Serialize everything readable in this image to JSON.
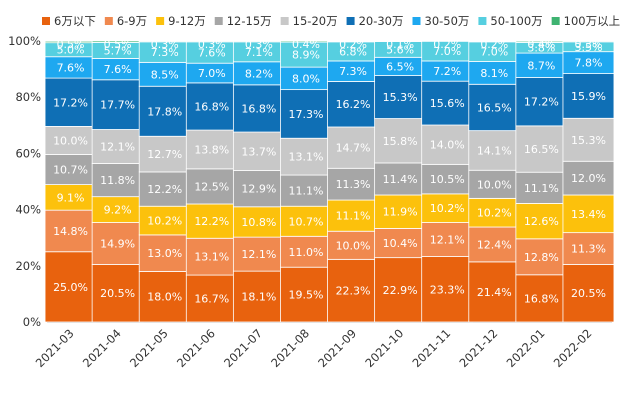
{
  "chart_data": {
    "type": "bar",
    "stacked": true,
    "percent": true,
    "title": "",
    "xlabel": "",
    "ylabel": "",
    "ylim": [
      0,
      100
    ],
    "yticks": [
      "0%",
      "20%",
      "40%",
      "60%",
      "80%",
      "100%"
    ],
    "grid": false,
    "legend_position": "top",
    "categories": [
      "2021-03",
      "2021-04",
      "2021-05",
      "2021-06",
      "2021-07",
      "2021-08",
      "2021-09",
      "2021-10",
      "2021-11",
      "2021-12",
      "2022-01",
      "2022-02"
    ],
    "series": [
      {
        "name": "6万以下",
        "color": "#e8620e",
        "label_color": "#ffffff",
        "values": [
          25.0,
          20.5,
          18.0,
          16.7,
          18.1,
          19.5,
          22.3,
          22.9,
          23.3,
          21.4,
          16.8,
          20.5
        ]
      },
      {
        "name": "6-9万",
        "color": "#f0894f",
        "label_color": "#ffffff",
        "values": [
          14.8,
          14.9,
          13.0,
          13.1,
          12.1,
          11.0,
          10.0,
          10.4,
          12.1,
          12.4,
          12.8,
          11.3
        ]
      },
      {
        "name": "9-12万",
        "color": "#fcc10c",
        "label_color": "#ffffff",
        "values": [
          9.1,
          9.2,
          10.2,
          12.2,
          10.8,
          10.7,
          11.1,
          11.9,
          10.2,
          10.2,
          12.6,
          13.4
        ]
      },
      {
        "name": "12-15万",
        "color": "#a6a6a6",
        "label_color": "#ffffff",
        "values": [
          10.7,
          11.8,
          12.2,
          12.5,
          12.9,
          11.1,
          11.3,
          11.4,
          10.5,
          10.0,
          11.1,
          12.0
        ]
      },
      {
        "name": "15-20万",
        "color": "#c8c8c8",
        "label_color": "#ffffff",
        "values": [
          10.0,
          12.1,
          12.7,
          13.8,
          13.7,
          13.1,
          14.7,
          15.8,
          14.0,
          14.1,
          16.5,
          15.3
        ]
      },
      {
        "name": "20-30万",
        "color": "#0f6fb5",
        "label_color": "#ffffff",
        "values": [
          17.2,
          17.7,
          17.8,
          16.8,
          16.8,
          17.3,
          16.2,
          15.3,
          15.6,
          16.5,
          17.2,
          15.9
        ]
      },
      {
        "name": "30-50万",
        "color": "#1ea8f0",
        "label_color": "#ffffff",
        "values": [
          7.6,
          7.6,
          8.5,
          7.0,
          8.2,
          8.0,
          7.3,
          6.5,
          7.2,
          8.1,
          8.7,
          7.8
        ]
      },
      {
        "name": "50-100万",
        "color": "#56cfe0",
        "label_color": "#ffffff",
        "values": [
          5.0,
          5.7,
          7.3,
          7.6,
          7.1,
          8.9,
          6.8,
          5.6,
          7.0,
          7.0,
          3.8,
          3.5
        ]
      },
      {
        "name": "100万以上",
        "color": "#3fb371",
        "label_color": "#ffffff",
        "values": [
          0.5,
          0.5,
          0.3,
          0.3,
          0.3,
          0.4,
          0.2,
          0.1,
          0.2,
          0.2,
          0.4,
          0.3
        ]
      }
    ]
  }
}
